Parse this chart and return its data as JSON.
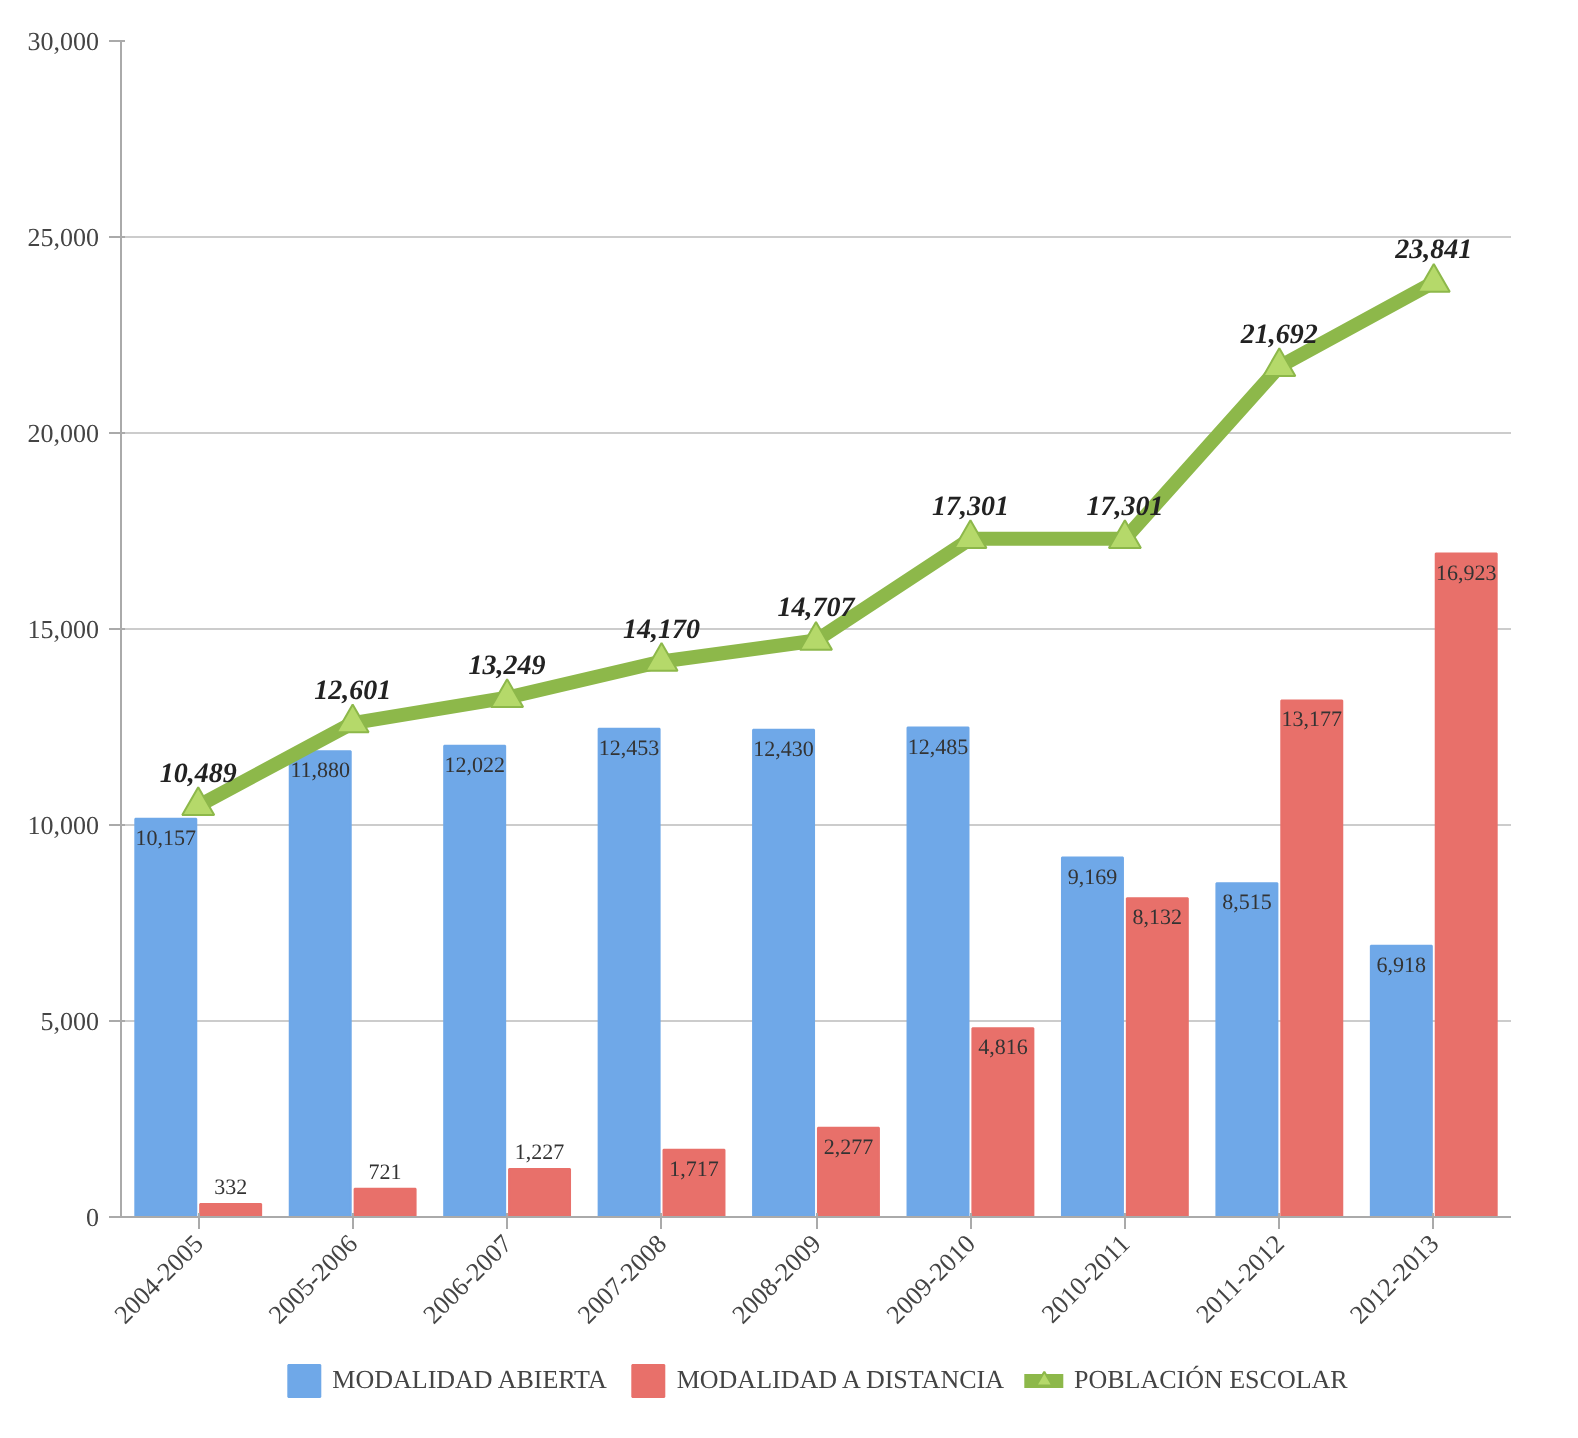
{
  "chart_data": {
    "type": "bar",
    "categories": [
      "2004-2005",
      "2005-2006",
      "2006-2007",
      "2007-2008",
      "2008-2009",
      "2009-2010",
      "2010-2011",
      "2011-2012",
      "2012-2013"
    ],
    "series": [
      {
        "name": "MODALIDAD ABIERTA",
        "color": "#6fa8e8",
        "values": [
          10157,
          11880,
          12022,
          12453,
          12430,
          12485,
          9169,
          8515,
          6918
        ],
        "value_labels": [
          "10,157",
          "11,880",
          "12,022",
          "12,453",
          "12,430",
          "12,485",
          "9,169",
          "8,515",
          "6,918"
        ]
      },
      {
        "name": "MODALIDAD A DISTANCIA",
        "color": "#e8706a",
        "values": [
          332,
          721,
          1227,
          1717,
          2277,
          4816,
          8132,
          13177,
          16923
        ],
        "value_labels": [
          "332",
          "721",
          "1,227",
          "1,717",
          "2,277",
          "4,816",
          "8,132",
          "13,177",
          "16,923"
        ]
      },
      {
        "name": "POBLACIÓN ESCOLAR",
        "type": "line",
        "color": "#8db84a",
        "marker": "triangle",
        "values": [
          10489,
          12601,
          13249,
          14170,
          14707,
          17301,
          17301,
          21692,
          23841
        ],
        "value_labels": [
          "10,489",
          "12,601",
          "13,249",
          "14,170",
          "14,707",
          "17,301",
          "17,301",
          "21,692",
          "23,841"
        ]
      }
    ],
    "ylim": [
      0,
      30000
    ],
    "yticks": [
      {
        "value": 0,
        "label": "0"
      },
      {
        "value": 5000,
        "label": "5,000"
      },
      {
        "value": 10000,
        "label": "10,000"
      },
      {
        "value": 15000,
        "label": "15,000"
      },
      {
        "value": 20000,
        "label": "20,000"
      },
      {
        "value": 25000,
        "label": "25,000"
      },
      {
        "value": 30000,
        "label": "30,000"
      }
    ],
    "grid": "y",
    "legend": "bottom"
  }
}
